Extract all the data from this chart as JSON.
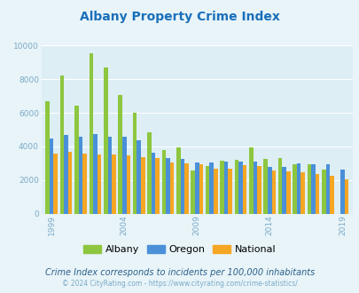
{
  "title": "Albany Property Crime Index",
  "title_color": "#1a6fba",
  "subtitle": "Crime Index corresponds to incidents per 100,000 inhabitants",
  "copyright": "© 2024 CityRating.com - https://www.cityrating.com/crime-statistics/",
  "years": [
    1999,
    2000,
    2001,
    2002,
    2003,
    2004,
    2005,
    2006,
    2007,
    2008,
    2009,
    2010,
    2011,
    2012,
    2013,
    2014,
    2015,
    2016,
    2017,
    2018,
    2019
  ],
  "albany": [
    6700,
    8200,
    6400,
    9550,
    8700,
    7050,
    6000,
    4850,
    3800,
    3950,
    2600,
    2850,
    3150,
    3200,
    3950,
    3250,
    3300,
    2950,
    2950,
    2650,
    0
  ],
  "oregon": [
    4500,
    4700,
    4600,
    4750,
    4600,
    4600,
    4350,
    3650,
    3300,
    3250,
    3050,
    3050,
    3100,
    3100,
    3100,
    2800,
    2800,
    3000,
    2950,
    2950,
    2650
  ],
  "national": [
    3600,
    3700,
    3600,
    3550,
    3550,
    3450,
    3350,
    3300,
    3050,
    3000,
    2950,
    2700,
    2700,
    2900,
    2850,
    2600,
    2500,
    2450,
    2350,
    2250,
    2050
  ],
  "albany_color": "#8dc63f",
  "oregon_color": "#4a90d9",
  "national_color": "#f5a623",
  "bg_color": "#e8f4f8",
  "plot_bg": "#ddeef5",
  "ylim": [
    0,
    10000
  ],
  "yticks": [
    0,
    2000,
    4000,
    6000,
    8000,
    10000
  ],
  "xtick_years": [
    1999,
    2004,
    2009,
    2014,
    2019
  ],
  "bar_width": 0.28,
  "grid_color": "#ffffff",
  "tick_label_color": "#7aaac8",
  "title_fontsize": 10,
  "legend_fontsize": 8,
  "subtitle_fontsize": 7,
  "copyright_fontsize": 5.5
}
